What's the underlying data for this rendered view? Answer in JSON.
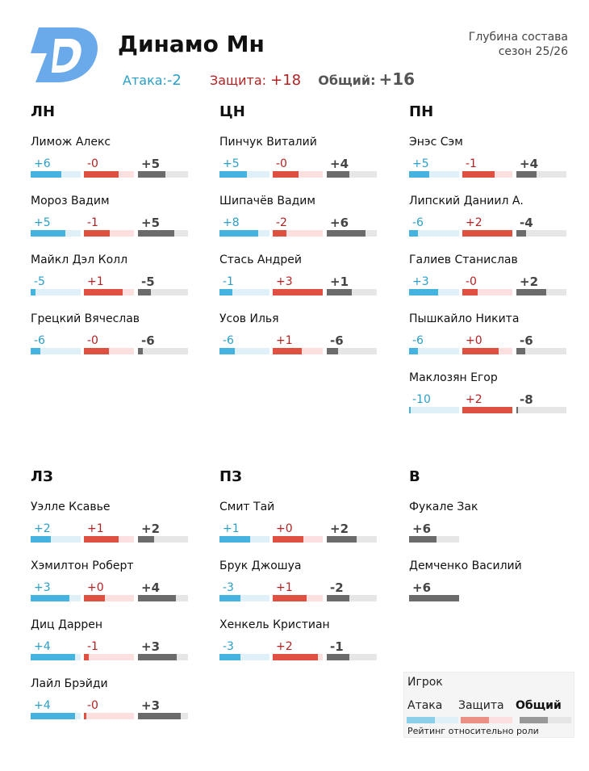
{
  "header": {
    "team": "Динамо Мн",
    "subtitle_line1": "Глубина состава",
    "subtitle_line2": "сезон 25/26",
    "attack_label": "Атака:",
    "attack_value": "-2",
    "defense_label": "Защита:",
    "defense_value": "+18",
    "overall_label": "Общий:",
    "overall_value": "+16"
  },
  "colors": {
    "attack": "#45b3df",
    "attack_track": "#dff0f8",
    "defense": "#e05040",
    "defense_track": "#fbe0df",
    "overall": "#6b6b6b",
    "overall_track": "#e6e6e6"
  },
  "legend": {
    "title": "Игрок",
    "attack": "Атака",
    "defense": "Защита",
    "overall": "Общий",
    "note": "Рейтинг относительно роли"
  },
  "chart_data": {
    "type": "bar",
    "title": "Динамо Мн",
    "scale_max": 10,
    "positions": [
      {
        "label": "ЛН",
        "players": [
          {
            "name": "Лимож Алекс",
            "attack": 6,
            "defense": 0,
            "overall": 5,
            "attack_label": "+6",
            "defense_label": "-0",
            "overall_label": "+5",
            "attack_pct": 0.62,
            "defense_pct": 0.7,
            "overall_pct": 0.55
          },
          {
            "name": "Мороз Вадим",
            "attack": 5,
            "defense": -1,
            "overall": 5,
            "attack_label": "+5",
            "defense_label": "-1",
            "overall_label": "+5",
            "attack_pct": 0.7,
            "defense_pct": 0.52,
            "overall_pct": 0.72
          },
          {
            "name": "Майкл Дэл Колл",
            "attack": -5,
            "defense": 1,
            "overall": -5,
            "attack_label": "-5",
            "defense_label": "+1",
            "overall_label": "-5",
            "attack_pct": 0.1,
            "defense_pct": 0.78,
            "overall_pct": 0.25
          },
          {
            "name": "Грецкий Вячеслав",
            "attack": -6,
            "defense": 0,
            "overall": -6,
            "attack_label": "-6",
            "defense_label": "-0",
            "overall_label": "-6",
            "attack_pct": 0.2,
            "defense_pct": 0.5,
            "overall_pct": 0.1
          }
        ]
      },
      {
        "label": "ЦН",
        "players": [
          {
            "name": "Пинчук Виталий",
            "attack": 5,
            "defense": 0,
            "overall": 4,
            "attack_label": "+5",
            "defense_label": "-0",
            "overall_label": "+4",
            "attack_pct": 0.55,
            "defense_pct": 0.52,
            "overall_pct": 0.45
          },
          {
            "name": "Шипачёв Вадим",
            "attack": 8,
            "defense": -2,
            "overall": 6,
            "attack_label": "+8",
            "defense_label": "-2",
            "overall_label": "+6",
            "attack_pct": 0.78,
            "defense_pct": 0.28,
            "overall_pct": 0.78
          },
          {
            "name": "Стась Андрей",
            "attack": -1,
            "defense": 3,
            "overall": 1,
            "attack_label": "-1",
            "defense_label": "+3",
            "overall_label": "+1",
            "attack_pct": 0.25,
            "defense_pct": 1.0,
            "overall_pct": 0.5
          },
          {
            "name": "Усов Илья",
            "attack": -6,
            "defense": 1,
            "overall": -6,
            "attack_label": "-6",
            "defense_label": "+1",
            "overall_label": "-6",
            "attack_pct": 0.3,
            "defense_pct": 0.58,
            "overall_pct": 0.22
          }
        ]
      },
      {
        "label": "ПН",
        "players": [
          {
            "name": "Энэс Сэм",
            "attack": 5,
            "defense": -1,
            "overall": 4,
            "attack_label": "+5",
            "defense_label": "-1",
            "overall_label": "+4",
            "attack_pct": 0.4,
            "defense_pct": 0.65,
            "overall_pct": 0.4
          },
          {
            "name": "Липский Даниил А.",
            "attack": -6,
            "defense": 2,
            "overall": -4,
            "attack_label": "-6",
            "defense_label": "+2",
            "overall_label": "-4",
            "attack_pct": 0.18,
            "defense_pct": 1.0,
            "overall_pct": 0.2
          },
          {
            "name": "Галиев Станислав",
            "attack": 3,
            "defense": 0,
            "overall": 2,
            "attack_label": "+3",
            "defense_label": "-0",
            "overall_label": "+2",
            "attack_pct": 0.58,
            "defense_pct": 0.3,
            "overall_pct": 0.6
          },
          {
            "name": "Пышкайло Никита",
            "attack": -6,
            "defense": 0,
            "overall": -6,
            "attack_label": "-6",
            "defense_label": "+0",
            "overall_label": "-6",
            "attack_pct": 0.18,
            "defense_pct": 0.72,
            "overall_pct": 0.18
          },
          {
            "name": "Маклозян Егор",
            "attack": -10,
            "defense": 2,
            "overall": -8,
            "attack_label": "-10",
            "defense_label": "+2",
            "overall_label": "-8",
            "attack_pct": 0.03,
            "defense_pct": 1.0,
            "overall_pct": 0.03
          }
        ]
      },
      {
        "label": "ЛЗ",
        "players": [
          {
            "name": "Уэлле Ксавье",
            "attack": 2,
            "defense": 1,
            "overall": 2,
            "attack_label": "+2",
            "defense_label": "+1",
            "overall_label": "+2",
            "attack_pct": 0.4,
            "defense_pct": 0.7,
            "overall_pct": 0.33
          },
          {
            "name": "Хэмилтон Роберт",
            "attack": 3,
            "defense": 0,
            "overall": 4,
            "attack_label": "+3",
            "defense_label": "+0",
            "overall_label": "+4",
            "attack_pct": 0.78,
            "defense_pct": 0.42,
            "overall_pct": 0.75
          },
          {
            "name": "Диц Даррен",
            "attack": 4,
            "defense": -1,
            "overall": 3,
            "attack_label": "+4",
            "defense_label": "-1",
            "overall_label": "+3",
            "attack_pct": 0.88,
            "defense_pct": 0.1,
            "overall_pct": 0.78
          },
          {
            "name": "Лайл Брэйди",
            "attack": 4,
            "defense": 0,
            "overall": 3,
            "attack_label": "+4",
            "defense_label": "-0",
            "overall_label": "+3",
            "attack_pct": 0.88,
            "defense_pct": 0.05,
            "overall_pct": 0.85
          }
        ]
      },
      {
        "label": "ПЗ",
        "players": [
          {
            "name": "Смит Тай",
            "attack": 1,
            "defense": 0,
            "overall": 2,
            "attack_label": "+1",
            "defense_label": "+0",
            "overall_label": "+2",
            "attack_pct": 0.62,
            "defense_pct": 0.62,
            "overall_pct": 0.6
          },
          {
            "name": "Брук Джошуа",
            "attack": -3,
            "defense": 1,
            "overall": -2,
            "attack_label": "-3",
            "defense_label": "+1",
            "overall_label": "-2",
            "attack_pct": 0.42,
            "defense_pct": 0.68,
            "overall_pct": 0.45
          },
          {
            "name": "Хенкель Кристиан",
            "attack": -3,
            "defense": 2,
            "overall": -1,
            "attack_label": "-3",
            "defense_label": "+2",
            "overall_label": "-1",
            "attack_pct": 0.42,
            "defense_pct": 0.9,
            "overall_pct": 0.45
          }
        ]
      },
      {
        "label": "В",
        "players": [
          {
            "name": "Фукале Зак",
            "overall": 6,
            "overall_label": "+6",
            "overall_pct": 0.55
          },
          {
            "name": "Демченко Василий",
            "overall": 6,
            "overall_label": "+6",
            "overall_pct": 1.0
          }
        ]
      }
    ]
  }
}
